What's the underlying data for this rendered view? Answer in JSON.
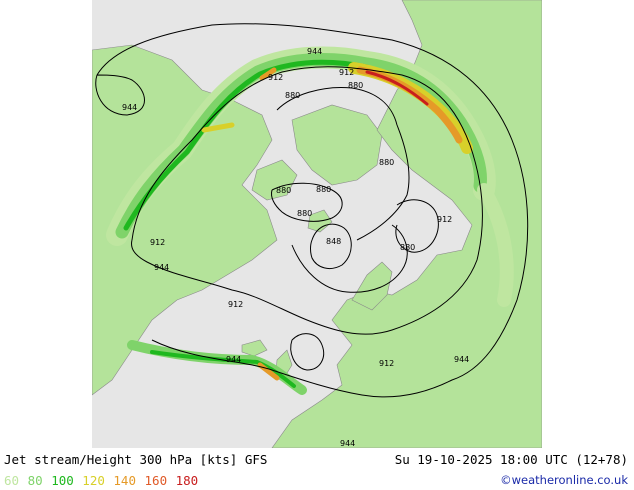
{
  "header": {
    "title": "Jet stream/Height 300 hPa [kts] GFS",
    "datetime": "Su 19-10-2025 18:00 UTC (12+78)"
  },
  "legend": {
    "items": [
      {
        "label": "60",
        "color": "#bfe6a0"
      },
      {
        "label": "80",
        "color": "#7fd36a"
      },
      {
        "label": "100",
        "color": "#1fb81f"
      },
      {
        "label": "120",
        "color": "#d8d02a"
      },
      {
        "label": "140",
        "color": "#e59a28"
      },
      {
        "label": "160",
        "color": "#e05a28"
      },
      {
        "label": "180",
        "color": "#c81e1e"
      }
    ]
  },
  "credit": "©weatheronline.co.uk",
  "map": {
    "contour_labels": [
      "944",
      "944",
      "912",
      "912",
      "880",
      "880",
      "880",
      "880",
      "880",
      "880",
      "848",
      "880",
      "912",
      "912",
      "944",
      "912",
      "944",
      "912",
      "944",
      "944"
    ],
    "colors": {
      "ocean": "#e6e6e6",
      "land": "#b4e39a",
      "land_border": "#8a8a8a"
    }
  }
}
